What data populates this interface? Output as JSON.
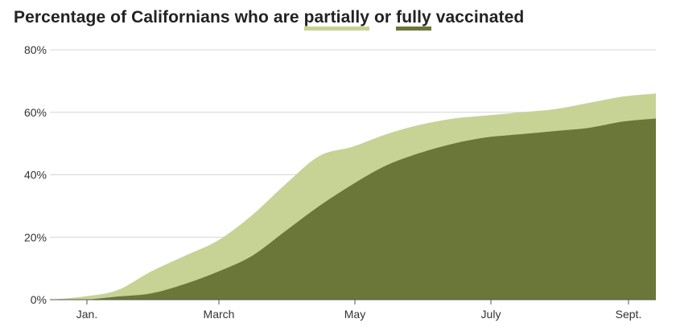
{
  "title": {
    "prefix": "Percentage of Californians who are ",
    "partial_word": "partially",
    "connector": " or ",
    "full_word": "fully",
    "suffix": " vaccinated"
  },
  "colors": {
    "partially": "#c6d395",
    "fully": "#6b7738",
    "grid": "#d6d6d6",
    "baseline": "#555555"
  },
  "chart_data": {
    "type": "area",
    "title": "Percentage of Californians who are partially or fully vaccinated",
    "xlabel": "",
    "ylabel": "",
    "ylim": [
      0,
      80
    ],
    "y_ticks": [
      0,
      20,
      40,
      60,
      80
    ],
    "y_tick_labels": [
      "0%",
      "20%",
      "40%",
      "60%",
      "80%"
    ],
    "x_ticks": [
      "Jan.",
      "March",
      "May",
      "July",
      "Sept."
    ],
    "x": [
      "Dec. 15",
      "Jan. 1",
      "Jan. 15",
      "Feb. 1",
      "Feb. 15",
      "March 1",
      "March 15",
      "April 1",
      "April 15",
      "May 1",
      "May 15",
      "June 1",
      "June 15",
      "July 1",
      "July 15",
      "Aug. 1",
      "Aug. 15",
      "Sept. 1",
      "Sept. 15"
    ],
    "grid": true,
    "legend": "inline-title",
    "series": [
      {
        "name": "partially",
        "values": [
          0,
          1,
          3,
          9,
          14,
          19,
          27,
          37,
          46,
          49,
          53,
          56,
          58,
          59,
          60,
          61,
          63,
          65,
          66
        ]
      },
      {
        "name": "fully",
        "values": [
          0,
          0,
          1,
          2,
          5,
          9,
          14,
          22,
          30,
          37,
          43,
          47,
          50,
          52,
          53,
          54,
          55,
          57,
          58
        ]
      }
    ]
  }
}
